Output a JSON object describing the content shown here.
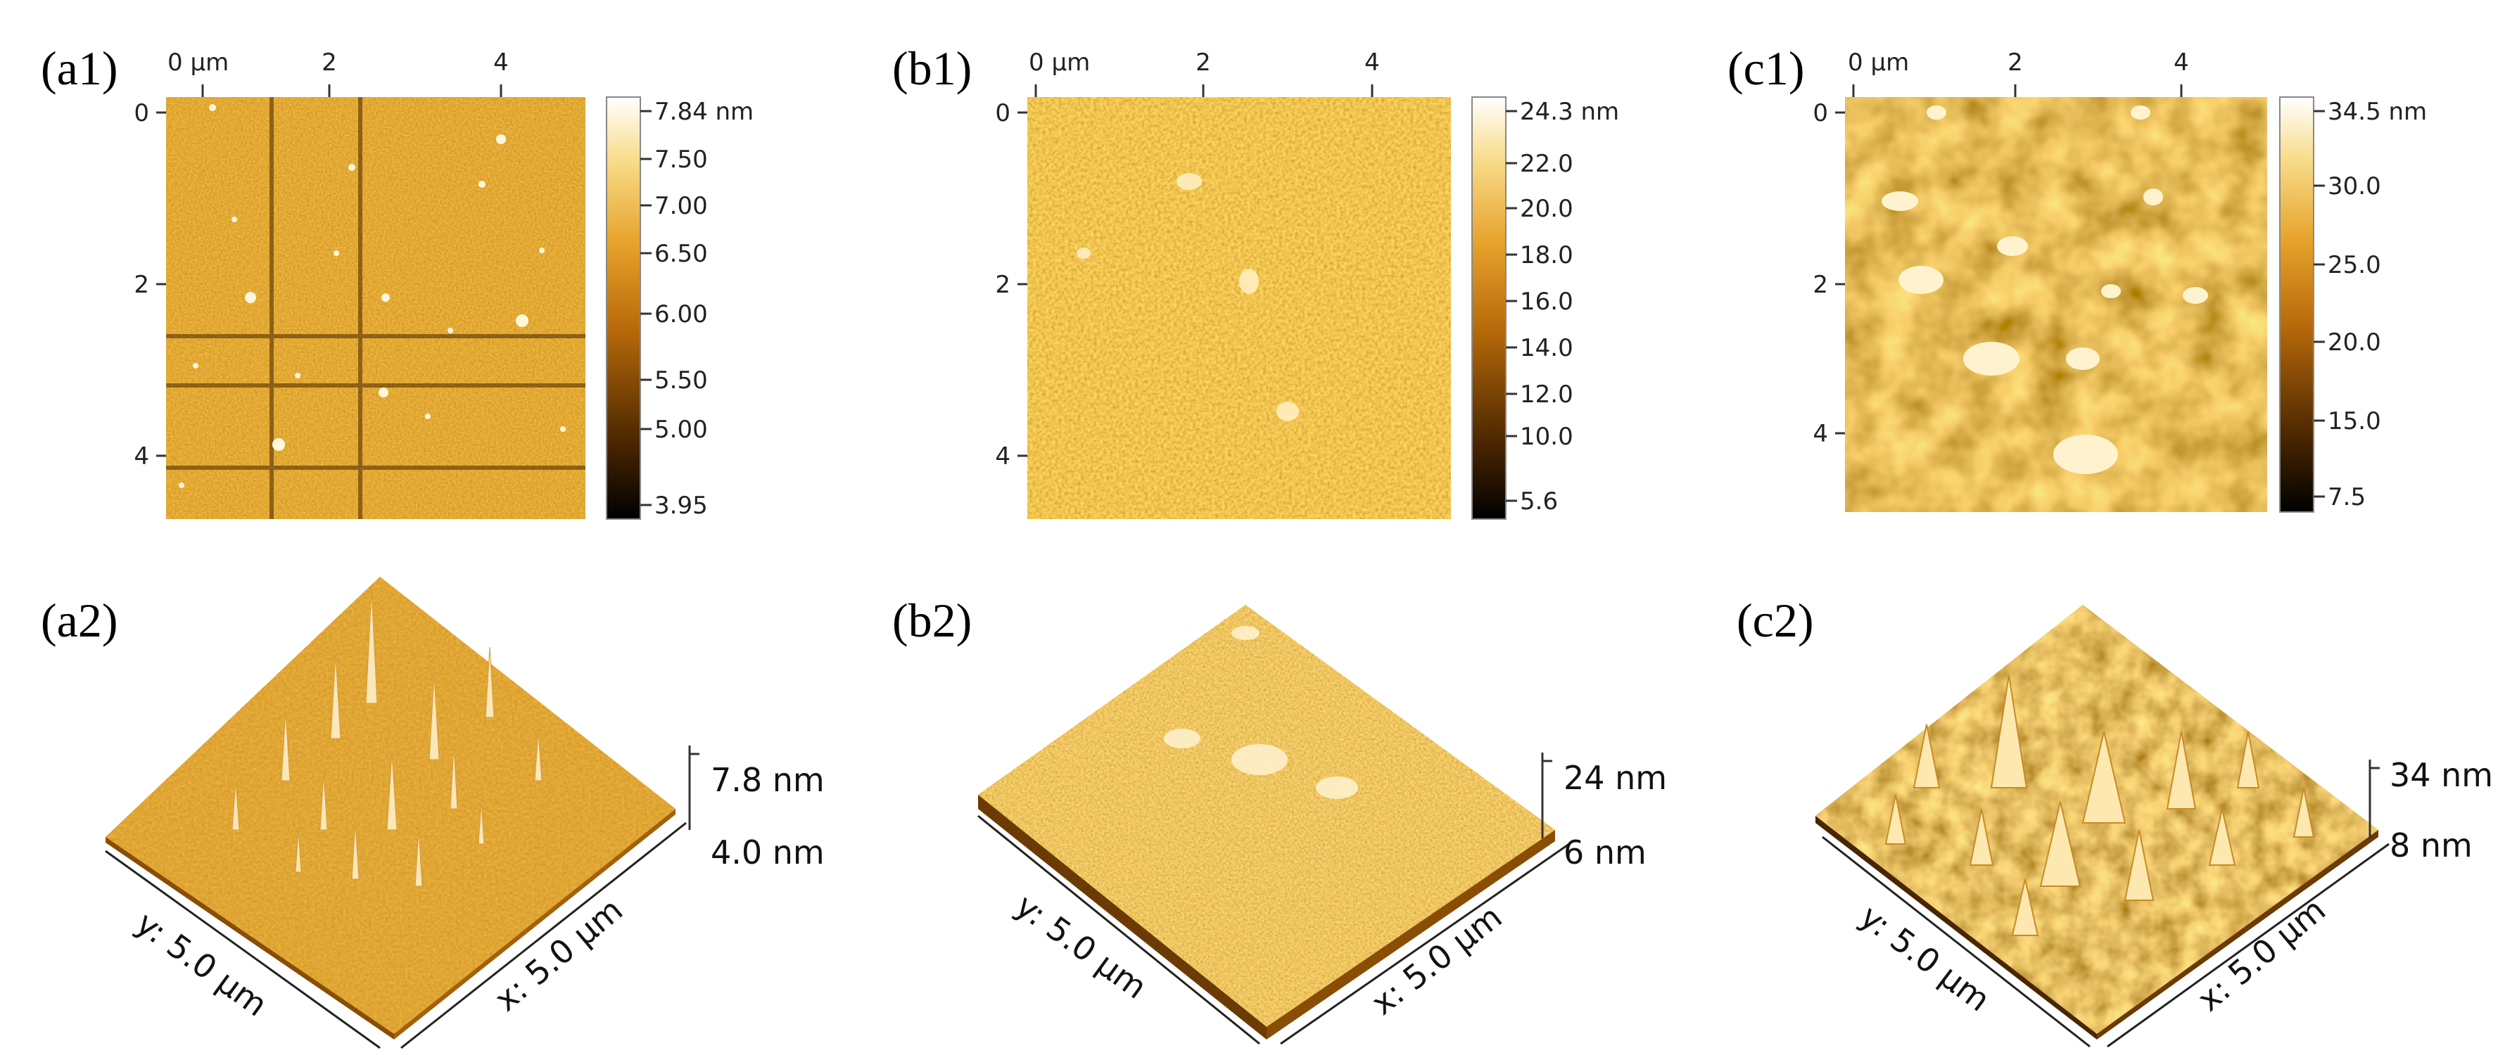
{
  "figure": {
    "panels": [
      {
        "id": "a1",
        "label": "(a1)",
        "x_ticks": [
          "0 µm",
          "2",
          "4"
        ],
        "y_ticks": [
          "0",
          "2",
          "4"
        ],
        "colorbar_ticks": [
          "7.84 nm",
          "7.50",
          "7.00",
          "6.50",
          "6.00",
          "5.50",
          "5.00",
          "3.95"
        ]
      },
      {
        "id": "b1",
        "label": "(b1)",
        "x_ticks": [
          "0 µm",
          "2",
          "4"
        ],
        "y_ticks": [
          "0",
          "2",
          "4"
        ],
        "colorbar_ticks": [
          "24.3 nm",
          "22.0",
          "20.0",
          "18.0",
          "16.0",
          "14.0",
          "12.0",
          "10.0",
          "5.6"
        ]
      },
      {
        "id": "c1",
        "label": "(c1)",
        "x_ticks": [
          "0 µm",
          "2",
          "4"
        ],
        "y_ticks": [
          "0",
          "2",
          "4"
        ],
        "colorbar_ticks": [
          "34.5 nm",
          "30.0",
          "25.0",
          "20.0",
          "15.0",
          "7.5"
        ]
      },
      {
        "id": "a2",
        "label": "(a2)",
        "y_axis": "y: 5.0 µm",
        "x_axis": "x: 5.0 µm",
        "z_max": "7.8 nm",
        "z_min": "4.0 nm"
      },
      {
        "id": "b2",
        "label": "(b2)",
        "y_axis": "y: 5.0 µm",
        "x_axis": "x: 5.0 µm",
        "z_max": "24 nm",
        "z_min": "6 nm"
      },
      {
        "id": "c2",
        "label": "(c2)",
        "y_axis": "y: 5.0 µm",
        "x_axis": "x: 5.0 µm",
        "z_max": "34 nm",
        "z_min": "8 nm"
      }
    ]
  },
  "colors": {
    "afm_dark": "#3a1e00",
    "afm_mid": "#c77a10",
    "afm_light": "#fff6d8"
  }
}
